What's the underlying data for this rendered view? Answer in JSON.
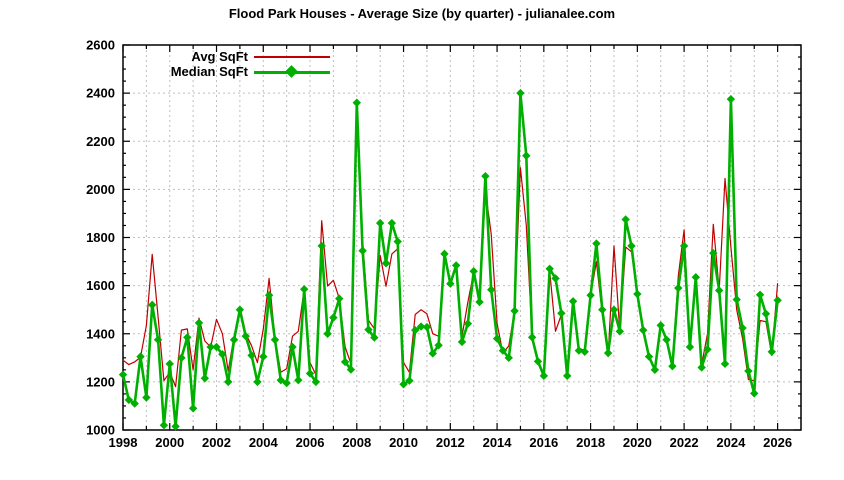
{
  "page": {
    "title": "Flood Park Houses - Average Size (by quarter) - julianalee.com"
  },
  "legend": {
    "items": [
      {
        "label": "Avg SqFt",
        "series": "avg"
      },
      {
        "label": "Median SqFt",
        "series": "median"
      }
    ]
  },
  "colors": {
    "avg_line": "#C00000",
    "median_line": "#00B000",
    "grid": "#bfbfbf",
    "axis": "#000000",
    "background": "#ffffff"
  },
  "chart_data": {
    "type": "line",
    "title": "Flood Park Houses - Average Size (by quarter) - julianalee.com",
    "xlabel": "",
    "ylabel": "",
    "xlim": [
      1998,
      2027
    ],
    "ylim": [
      1000,
      2600
    ],
    "grid": true,
    "legend_position": "top-left-inside",
    "x_start": 1998.0,
    "x_step": 0.25,
    "x_tick_labels": [
      "1998",
      "2000",
      "2002",
      "2004",
      "2006",
      "2008",
      "2010",
      "2012",
      "2014",
      "2016",
      "2018",
      "2020",
      "2022",
      "2024",
      "2026"
    ],
    "x_tick_label_values": [
      1998,
      2000,
      2002,
      2004,
      2006,
      2008,
      2010,
      2012,
      2014,
      2016,
      2018,
      2020,
      2022,
      2024,
      2026
    ],
    "y_tick_labels": [
      "1000",
      "1200",
      "1400",
      "1600",
      "1800",
      "2000",
      "2200",
      "2400",
      "2600"
    ],
    "y_tick_label_values": [
      1000,
      1200,
      1400,
      1600,
      1800,
      2000,
      2200,
      2400,
      2600
    ],
    "y_minor_step": 50,
    "series": [
      {
        "name": "Avg SqFt",
        "color": "#C00000",
        "marker": "none",
        "line_width": 1.2,
        "values": [
          1290,
          1272,
          1283,
          1302,
          1435,
          1730,
          1470,
          1205,
          1240,
          1180,
          1415,
          1420,
          1250,
          1465,
          1370,
          1345,
          1460,
          1400,
          1245,
          1390,
          1512,
          1400,
          1350,
          1280,
          1420,
          1630,
          1380,
          1240,
          1255,
          1390,
          1410,
          1585,
          1280,
          1230,
          1870,
          1598,
          1622,
          1546,
          1345,
          1276,
          2330,
          1787,
          1456,
          1421,
          1725,
          1597,
          1732,
          1753,
          1280,
          1240,
          1480,
          1500,
          1483,
          1400,
          1390,
          1735,
          1610,
          1680,
          1390,
          1530,
          1655,
          1530,
          1995,
          1815,
          1442,
          1318,
          1350,
          1495,
          2090,
          1850,
          1390,
          1290,
          1230,
          1660,
          1410,
          1480,
          1230,
          1535,
          1340,
          1330,
          1560,
          1700,
          1480,
          1305,
          1765,
          1410,
          1760,
          1740,
          1565,
          1415,
          1305,
          1255,
          1435,
          1375,
          1270,
          1640,
          1832,
          1350,
          1622,
          1270,
          1400,
          1855,
          1580,
          2045,
          1760,
          1500,
          1380,
          1210,
          1205,
          1455,
          1450,
          1310,
          1610
        ]
      },
      {
        "name": "Median SqFt",
        "color": "#00B000",
        "marker": "diamond",
        "line_width": 2.6,
        "values": [
          1230,
          1125,
          1110,
          1305,
          1135,
          1520,
          1375,
          1020,
          1275,
          1015,
          1300,
          1385,
          1090,
          1445,
          1215,
          1345,
          1345,
          1315,
          1200,
          1375,
          1500,
          1390,
          1310,
          1200,
          1305,
          1560,
          1375,
          1207,
          1195,
          1345,
          1207,
          1585,
          1235,
          1200,
          1765,
          1400,
          1467,
          1546,
          1283,
          1251,
          2360,
          1745,
          1417,
          1384,
          1860,
          1693,
          1860,
          1783,
          1190,
          1205,
          1415,
          1430,
          1428,
          1318,
          1352,
          1732,
          1608,
          1684,
          1366,
          1442,
          1660,
          1532,
          2055,
          1583,
          1380,
          1330,
          1300,
          1495,
          2400,
          2140,
          1385,
          1285,
          1225,
          1670,
          1630,
          1485,
          1225,
          1535,
          1330,
          1325,
          1560,
          1775,
          1500,
          1320,
          1500,
          1410,
          1875,
          1765,
          1565,
          1415,
          1305,
          1250,
          1435,
          1375,
          1265,
          1590,
          1765,
          1345,
          1635,
          1260,
          1335,
          1735,
          1580,
          1275,
          2375,
          1542,
          1424,
          1245,
          1152,
          1562,
          1483,
          1325,
          1539
        ]
      }
    ]
  }
}
